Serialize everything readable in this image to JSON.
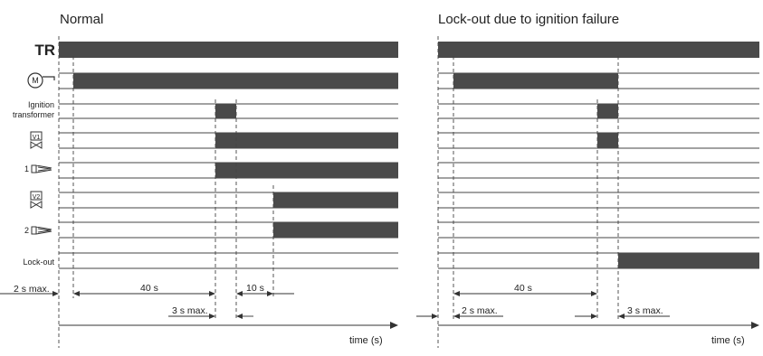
{
  "diagrams": {
    "normal": {
      "title": "Normal"
    },
    "lockout": {
      "title": "Lock-out due to ignition failure"
    }
  },
  "rows": {
    "tr": "TR",
    "motor_symbol": "M",
    "ignition_line1": "Ignition",
    "ignition_line2": "transformer",
    "valve1_symbol": "V1",
    "flame1_number": "1",
    "valve2_symbol": "V2",
    "flame2_number": "2",
    "lockout": "Lock-out"
  },
  "dimensions": {
    "normal": {
      "d1": "2 s max.",
      "d2": "40 s",
      "d3": "10 s",
      "d4": "3 s max."
    },
    "lockout": {
      "d1": "40 s",
      "d2": "2 s max.",
      "d3": "3 s max."
    }
  },
  "axis": {
    "label": "time (s)"
  },
  "colors": {
    "signal_on": "#4a4a4a",
    "lines": "#444444"
  }
}
